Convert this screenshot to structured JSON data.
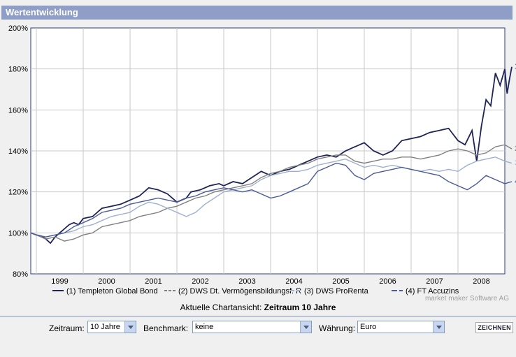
{
  "header": {
    "title": "Wertentwicklung"
  },
  "chart_data": {
    "type": "line",
    "yticks": [
      "200%",
      "180%",
      "160%",
      "140%",
      "120%",
      "100%",
      "80%"
    ],
    "ylim": [
      80,
      200
    ],
    "xticks": [
      "1999",
      "2000",
      "2001",
      "2002",
      "2003",
      "2004",
      "2005",
      "2006",
      "2007",
      "2008"
    ],
    "xlim": [
      1998.88,
      2009.0
    ],
    "grid": true,
    "watermark": "market maker Software AG",
    "legend_position": "bottom",
    "series": [
      {
        "label": "(1) Templeton Global Bond",
        "end_label": "1",
        "color": "#1f2456",
        "dash": "",
        "x": [
          1998.88,
          1999.0,
          1999.1,
          1999.2,
          1999.3,
          1999.4,
          1999.5,
          1999.6,
          1999.7,
          1999.8,
          1999.9,
          2000.0,
          2000.2,
          2000.4,
          2000.6,
          2000.8,
          2001.0,
          2001.2,
          2001.4,
          2001.6,
          2001.8,
          2002.0,
          2002.2,
          2002.3,
          2002.5,
          2002.7,
          2002.9,
          2003.0,
          2003.2,
          2003.4,
          2003.6,
          2003.8,
          2004.0,
          2004.2,
          2004.4,
          2004.6,
          2004.8,
          2005.0,
          2005.2,
          2005.4,
          2005.6,
          2005.8,
          2006.0,
          2006.2,
          2006.4,
          2006.6,
          2006.8,
          2007.0,
          2007.2,
          2007.4,
          2007.6,
          2007.8,
          2008.0,
          2008.15,
          2008.3,
          2008.4,
          2008.5,
          2008.6,
          2008.7,
          2008.8,
          2008.9,
          2009.0,
          2009.05,
          2009.1,
          2009.15
        ],
        "y": [
          100,
          99,
          98.5,
          97,
          95,
          98,
          100,
          102,
          104,
          105,
          104,
          107,
          108,
          112,
          113,
          114,
          116,
          118,
          122,
          121,
          119,
          115,
          117,
          120,
          121,
          123,
          124,
          123,
          125,
          124,
          127,
          130,
          128,
          130,
          131,
          133,
          135,
          137,
          138,
          137,
          140,
          142,
          144,
          140,
          138,
          140,
          145,
          146,
          147,
          149,
          150,
          151,
          145,
          143,
          150,
          135,
          152,
          165,
          162,
          178,
          172,
          180,
          168,
          175,
          181
        ]
      },
      {
        "label": "(2) DWS Dt. Vermögensbildungsf. R",
        "end_label": "2",
        "color": "#808080",
        "dash": "4,2",
        "x": [
          1998.88,
          1999.0,
          1999.2,
          1999.4,
          1999.6,
          1999.8,
          2000.0,
          2000.2,
          2000.4,
          2000.6,
          2000.8,
          2001.0,
          2001.2,
          2001.4,
          2001.6,
          2001.8,
          2002.0,
          2002.2,
          2002.4,
          2002.6,
          2002.8,
          2003.0,
          2003.2,
          2003.4,
          2003.6,
          2003.8,
          2004.0,
          2004.2,
          2004.4,
          2004.6,
          2004.8,
          2005.0,
          2005.2,
          2005.4,
          2005.6,
          2005.8,
          2006.0,
          2006.2,
          2006.4,
          2006.6,
          2006.8,
          2007.0,
          2007.2,
          2007.4,
          2007.6,
          2007.8,
          2008.0,
          2008.2,
          2008.4,
          2008.6,
          2008.8,
          2009.0,
          2009.15
        ],
        "y": [
          100,
          99,
          97,
          98,
          96,
          97,
          99,
          100,
          103,
          104,
          105,
          106,
          108,
          109,
          110,
          112,
          113,
          115,
          117,
          118,
          120,
          121,
          122,
          123,
          124,
          127,
          129,
          130,
          132,
          133,
          134,
          136,
          137,
          138,
          138,
          135,
          134,
          135,
          136,
          136,
          137,
          137,
          136,
          137,
          138,
          140,
          141,
          140,
          138,
          139,
          142,
          143,
          141
        ]
      },
      {
        "label": "(3) DWS ProRenta",
        "end_label": "3",
        "color": "#9fb0cf",
        "dash": "6,3",
        "x": [
          1998.88,
          1999.0,
          1999.2,
          1999.4,
          1999.6,
          1999.8,
          2000.0,
          2000.2,
          2000.4,
          2000.6,
          2000.8,
          2001.0,
          2001.2,
          2001.4,
          2001.6,
          2001.8,
          2002.0,
          2002.2,
          2002.4,
          2002.6,
          2002.8,
          2003.0,
          2003.2,
          2003.4,
          2003.6,
          2003.8,
          2004.0,
          2004.2,
          2004.4,
          2004.6,
          2004.8,
          2005.0,
          2005.2,
          2005.4,
          2005.6,
          2005.8,
          2006.0,
          2006.2,
          2006.4,
          2006.6,
          2006.8,
          2007.0,
          2007.2,
          2007.4,
          2007.6,
          2007.8,
          2008.0,
          2008.2,
          2008.4,
          2008.6,
          2008.8,
          2009.0,
          2009.15
        ],
        "y": [
          100,
          99,
          98,
          99,
          100,
          101,
          103,
          104,
          106,
          108,
          109,
          110,
          113,
          115,
          114,
          112,
          110,
          108,
          110,
          114,
          117,
          120,
          121,
          122,
          123,
          126,
          128,
          129,
          130,
          130,
          131,
          133,
          134,
          135,
          136,
          134,
          132,
          133,
          132,
          133,
          132,
          131,
          130,
          131,
          130,
          131,
          130,
          133,
          135,
          136,
          137,
          135,
          134
        ]
      },
      {
        "label": "(4) FT Accuzins",
        "end_label": "4",
        "color": "#4a5a9a",
        "dash": "8,3",
        "x": [
          1998.88,
          1999.0,
          1999.2,
          1999.4,
          1999.6,
          1999.8,
          2000.0,
          2000.2,
          2000.4,
          2000.6,
          2000.8,
          2001.0,
          2001.2,
          2001.4,
          2001.6,
          2001.8,
          2002.0,
          2002.2,
          2002.4,
          2002.6,
          2002.8,
          2003.0,
          2003.2,
          2003.4,
          2003.6,
          2003.8,
          2004.0,
          2004.2,
          2004.4,
          2004.6,
          2004.8,
          2005.0,
          2005.2,
          2005.4,
          2005.6,
          2005.8,
          2006.0,
          2006.2,
          2006.4,
          2006.6,
          2006.8,
          2007.0,
          2007.2,
          2007.4,
          2007.6,
          2007.8,
          2008.0,
          2008.2,
          2008.4,
          2008.6,
          2008.8,
          2009.0,
          2009.15
        ],
        "y": [
          100,
          99,
          98,
          99,
          100,
          103,
          105,
          107,
          110,
          111,
          112,
          114,
          115,
          116,
          117,
          116,
          115,
          117,
          118,
          120,
          121,
          122,
          121,
          120,
          121,
          119,
          117,
          118,
          120,
          122,
          124,
          130,
          132,
          134,
          133,
          128,
          126,
          129,
          130,
          131,
          132,
          131,
          130,
          129,
          128,
          125,
          123,
          121,
          124,
          128,
          126,
          124,
          125
        ]
      }
    ]
  },
  "caption": {
    "prefix": "Aktuelle Chartansicht:",
    "value": "Zeitraum 10 Jahre"
  },
  "controls": {
    "zeitraum_label": "Zeitraum:",
    "zeitraum_value": "10 Jahre",
    "benchmark_label": "Benchmark:",
    "benchmark_value": "keine",
    "waehrung_label": "Währung:",
    "waehrung_value": "Euro",
    "submit_label": "ZEICHNEN"
  }
}
